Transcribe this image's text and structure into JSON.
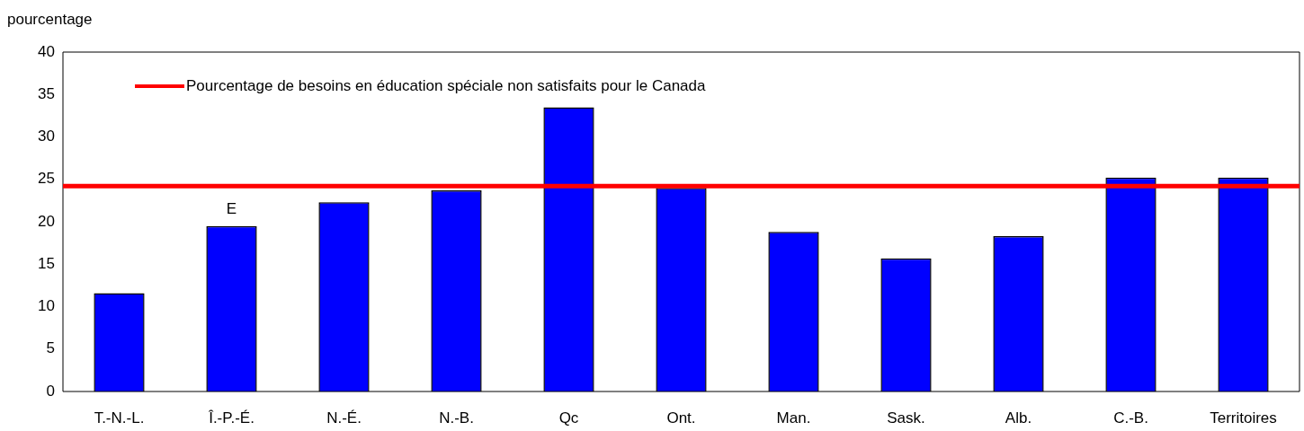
{
  "chart_data": {
    "type": "bar",
    "ylabel": "pourcentage",
    "categories": [
      "T.-N.-L.",
      "Î.-P.-É.",
      "N.-É.",
      "N.-B.",
      "Qc",
      "Ont.",
      "Man.",
      "Sask.",
      "Alb.",
      "C.-B.",
      "Territoires"
    ],
    "values": [
      11.6,
      19.5,
      22.3,
      23.7,
      33.5,
      24.0,
      18.8,
      15.7,
      18.3,
      25.2,
      25.2
    ],
    "color": "#0000ff",
    "ylim": [
      0,
      40
    ],
    "yticks": [
      0,
      5,
      10,
      15,
      20,
      25,
      30,
      35,
      40
    ],
    "grid": false,
    "legend": "top left",
    "ref_lines": [
      {
        "axis": "y",
        "value": 24.2,
        "label": "Pourcentage de besoins en éducation spéciale non satisfaits pour le Canada",
        "color": "#ff0000",
        "line_style": "solid"
      }
    ],
    "annotations": [
      {
        "text": "E",
        "x": "Î.-P.-É.",
        "y": 19.5
      }
    ]
  }
}
